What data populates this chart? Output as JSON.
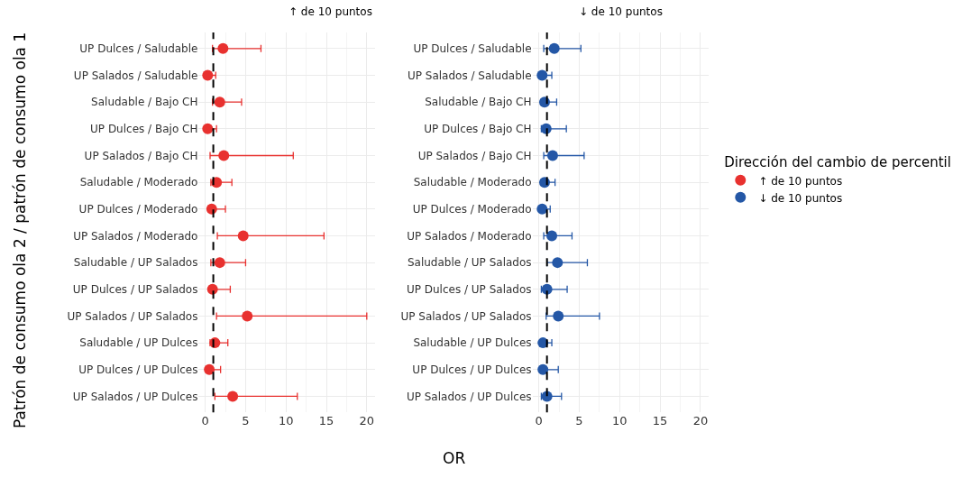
{
  "chart_data": [
    {
      "type": "scatter",
      "orientation": "horizontal",
      "title": "↑ de 10 puntos",
      "xlabel": "OR",
      "ylabel": "Patrón de consumo ola 2 / patrón de consumo ola 1",
      "categories": [
        "UP Dulces / Saludable",
        "UP Salados / Saludable",
        "Saludable / Bajo CH",
        "UP Dulces / Bajo CH",
        "UP Salados / Bajo CH",
        "Saludable / Moderado",
        "UP Dulces / Moderado",
        "UP Salados / Moderado",
        "Saludable / UP Salados",
        "UP Dulces / UP Salados",
        "UP Salados / UP Salados",
        "Saludable / UP Dulces",
        "UP Dulces / UP Dulces",
        "UP Salados / UP Dulces"
      ],
      "series": [
        {
          "name": "↑ de 10 puntos",
          "color": "#e8312f",
          "values": [
            2.2,
            0.3,
            1.8,
            0.3,
            2.3,
            1.4,
            0.8,
            4.7,
            1.8,
            0.9,
            5.2,
            1.2,
            0.5,
            3.4
          ],
          "errors": [
            [
              0.9,
              6.9
            ],
            [
              0.1,
              1.3
            ],
            [
              0.9,
              4.5
            ],
            [
              0.1,
              1.4
            ],
            [
              0.6,
              10.9
            ],
            [
              0.7,
              3.3
            ],
            [
              0.4,
              2.5
            ],
            [
              1.5,
              14.7
            ],
            [
              0.7,
              5.0
            ],
            [
              0.6,
              3.1
            ],
            [
              1.4,
              20.0
            ],
            [
              0.6,
              2.8
            ],
            [
              0.1,
              1.9
            ],
            [
              1.2,
              11.4
            ]
          ]
        }
      ],
      "xlim": [
        -0.8,
        21
      ],
      "xticks": [
        0,
        5,
        10,
        15,
        20
      ],
      "grid": true,
      "marker": "circle",
      "legend": "right",
      "ref_lines": [
        {
          "axis": "x",
          "value": 1,
          "color": "#000000",
          "line_style": "dashed"
        }
      ]
    },
    {
      "type": "scatter",
      "orientation": "horizontal",
      "title": "↓ de 10 puntos",
      "legend_title": "Dirección del cambio de percentil",
      "categories": [
        "UP Dulces / Saludable",
        "UP Salados / Saludable",
        "Saludable / Bajo CH",
        "UP Dulces / Bajo CH",
        "UP Salados / Bajo CH",
        "Saludable / Moderado",
        "UP Dulces / Moderado",
        "UP Salados / Moderado",
        "Saludable / UP Salados",
        "UP Dulces / UP Salados",
        "UP Salados / UP Salados",
        "Saludable / UP Dulces",
        "UP Dulces / UP Dulces",
        "UP Salados / UP Dulces"
      ],
      "series": [
        {
          "name": "↓ de 10 puntos",
          "color": "#2457a6",
          "values": [
            1.9,
            0.4,
            0.7,
            0.9,
            1.7,
            0.7,
            0.4,
            1.6,
            2.3,
            1.0,
            2.4,
            0.5,
            0.5,
            1.0
          ],
          "errors": [
            [
              0.6,
              5.2
            ],
            [
              0.2,
              1.6
            ],
            [
              0.3,
              2.2
            ],
            [
              0.3,
              3.4
            ],
            [
              0.6,
              5.6
            ],
            [
              0.3,
              2.0
            ],
            [
              0.1,
              1.4
            ],
            [
              0.6,
              4.1
            ],
            [
              1.0,
              6.0
            ],
            [
              0.3,
              3.5
            ],
            [
              0.9,
              7.5
            ],
            [
              0.2,
              1.6
            ],
            [
              0.2,
              2.4
            ],
            [
              0.3,
              2.8
            ]
          ]
        }
      ],
      "xlim": [
        -0.8,
        21
      ],
      "xticks": [
        0,
        5,
        10,
        15,
        20
      ],
      "grid": true,
      "marker": "circle",
      "legend": "right",
      "ref_lines": [
        {
          "axis": "x",
          "value": 1,
          "color": "#000000",
          "line_style": "dashed"
        }
      ]
    }
  ]
}
